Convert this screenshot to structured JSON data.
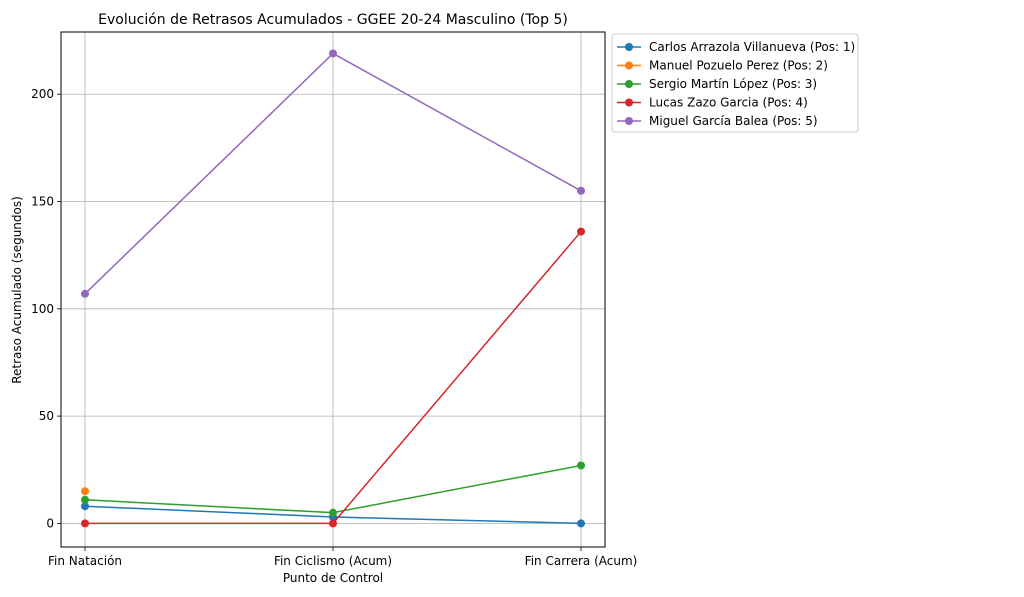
{
  "chart_data": {
    "type": "line",
    "title": "Evolución de Retrasos Acumulados - GGEE 20-24 Masculino (Top 5)",
    "xlabel": "Punto de Control",
    "ylabel": "Retraso Acumulado (segundos)",
    "categories": [
      "Fin Natación",
      "Fin Ciclismo (Acum)",
      "Fin Carrera (Acum)"
    ],
    "ylim": [
      -11,
      229
    ],
    "yticks": [
      0,
      50,
      100,
      150,
      200
    ],
    "grid": true,
    "legend_position": "outside-right-top",
    "series": [
      {
        "name": "Carlos Arrazola Villanueva (Pos: 1)",
        "color": "#1f77b4",
        "values": [
          8,
          3,
          0
        ]
      },
      {
        "name": "Manuel Pozuelo Perez (Pos: 2)",
        "color": "#ff7f0e",
        "values": [
          15,
          null,
          null
        ]
      },
      {
        "name": "Sergio Martín López (Pos: 3)",
        "color": "#2ca02c",
        "values": [
          11,
          5,
          27
        ]
      },
      {
        "name": "Lucas Zazo Garcia (Pos: 4)",
        "color": "#d62728",
        "values": [
          0,
          0,
          136
        ]
      },
      {
        "name": "Miguel García Balea (Pos: 5)",
        "color": "#9467bd",
        "values": [
          107,
          219,
          155
        ]
      }
    ]
  }
}
